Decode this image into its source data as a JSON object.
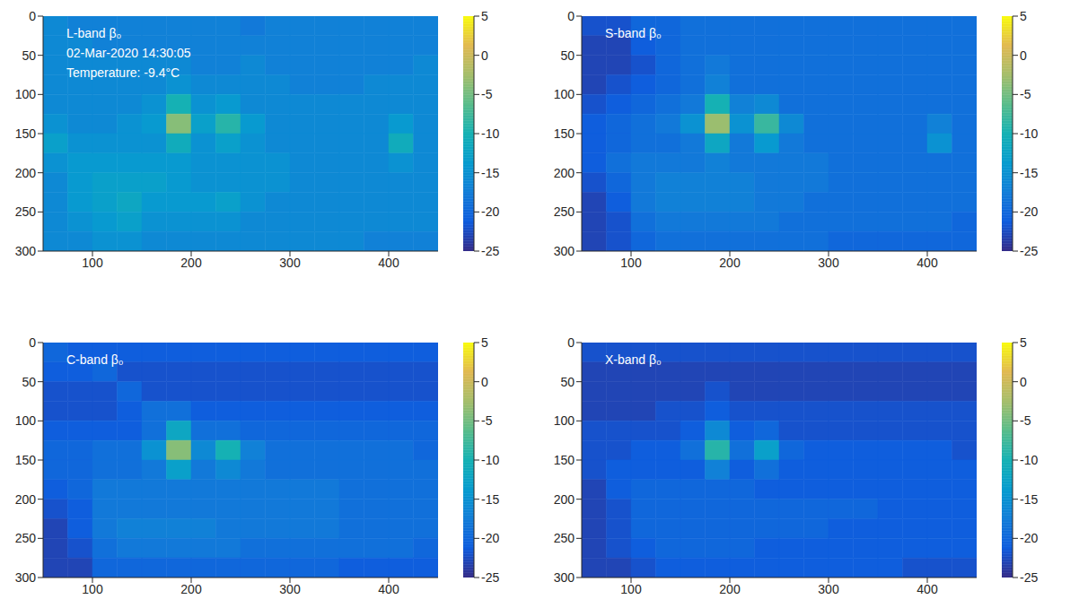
{
  "chart_data": [
    {
      "type": "heatmap",
      "title": "L-band β₀",
      "annotations": [
        "02-Mar-2020 14:30:05",
        "Temperature: -9.4°C"
      ],
      "xlim": [
        50,
        450
      ],
      "xticks": [
        100,
        200,
        300,
        400
      ],
      "ylim": [
        0,
        300
      ],
      "yticks": [
        0,
        50,
        100,
        150,
        200,
        250,
        300
      ],
      "x_edges": [
        50,
        75,
        100,
        125,
        150,
        175,
        200,
        225,
        250,
        275,
        300,
        325,
        350,
        375,
        400,
        425,
        450
      ],
      "y_edges": [
        0,
        25,
        50,
        75,
        100,
        125,
        150,
        175,
        200,
        225,
        250,
        275,
        300
      ],
      "cells": [
        [
          -16,
          -17,
          -17,
          -17,
          -17,
          -17,
          -17,
          -17,
          -18,
          -17,
          -17,
          -17,
          -17,
          -17,
          -17,
          -17
        ],
        [
          -16,
          -16,
          -17,
          -17,
          -17,
          -17,
          -17,
          -17,
          -17,
          -17,
          -17,
          -17,
          -17,
          -17,
          -17,
          -17
        ],
        [
          -16,
          -16,
          -16,
          -16,
          -16,
          -16,
          -17,
          -17,
          -16,
          -17,
          -17,
          -17,
          -17,
          -17,
          -17,
          -16
        ],
        [
          -16,
          -16,
          -16,
          -16,
          -16,
          -15,
          -16,
          -16,
          -16,
          -16,
          -17,
          -17,
          -17,
          -16,
          -16,
          -16
        ],
        [
          -16,
          -16,
          -16,
          -16,
          -15,
          -10,
          -15,
          -14,
          -16,
          -16,
          -16,
          -16,
          -16,
          -16,
          -16,
          -16
        ],
        [
          -15,
          -16,
          -16,
          -15,
          -14,
          -4,
          -13,
          -9,
          -14,
          -16,
          -16,
          -16,
          -16,
          -16,
          -14,
          -16
        ],
        [
          -13,
          -15,
          -15,
          -15,
          -15,
          -11,
          -15,
          -13,
          -15,
          -16,
          -16,
          -16,
          -16,
          -16,
          -11,
          -16
        ],
        [
          -15,
          -14,
          -14,
          -14,
          -14,
          -14,
          -15,
          -15,
          -15,
          -15,
          -16,
          -16,
          -16,
          -16,
          -15,
          -16
        ],
        [
          -16,
          -14,
          -13,
          -13,
          -13,
          -14,
          -15,
          -15,
          -15,
          -15,
          -16,
          -16,
          -16,
          -16,
          -16,
          -16
        ],
        [
          -16,
          -14,
          -13,
          -12,
          -14,
          -14,
          -14,
          -13,
          -15,
          -16,
          -16,
          -16,
          -16,
          -16,
          -16,
          -16
        ],
        [
          -16,
          -15,
          -14,
          -13,
          -15,
          -15,
          -15,
          -15,
          -16,
          -16,
          -16,
          -16,
          -16,
          -16,
          -16,
          -16
        ],
        [
          -16,
          -16,
          -15,
          -15,
          -16,
          -16,
          -16,
          -16,
          -16,
          -16,
          -16,
          -16,
          -16,
          -17,
          -17,
          -17
        ]
      ],
      "colorbar": {
        "range": [
          -25,
          5
        ],
        "ticks": [
          -25,
          -20,
          -15,
          -10,
          -5,
          0,
          5
        ]
      }
    },
    {
      "type": "heatmap",
      "title": "S-band β₀",
      "xlim": [
        50,
        450
      ],
      "xticks": [
        100,
        200,
        300,
        400
      ],
      "ylim": [
        0,
        300
      ],
      "yticks": [
        0,
        50,
        100,
        150,
        200,
        250,
        300
      ],
      "x_edges": [
        50,
        75,
        100,
        125,
        150,
        175,
        200,
        225,
        250,
        275,
        300,
        325,
        350,
        375,
        400,
        425,
        450
      ],
      "y_edges": [
        0,
        25,
        50,
        75,
        100,
        125,
        150,
        175,
        200,
        225,
        250,
        275,
        300
      ],
      "cells": [
        [
          -22,
          -22,
          -20,
          -20,
          -19,
          -19,
          -19,
          -19,
          -19,
          -19,
          -19,
          -19,
          -19,
          -19,
          -19,
          -19
        ],
        [
          -23,
          -23,
          -21,
          -20,
          -19,
          -19,
          -19,
          -19,
          -19,
          -19,
          -19,
          -19,
          -19,
          -19,
          -19,
          -19
        ],
        [
          -23,
          -23,
          -22,
          -20,
          -19,
          -18,
          -19,
          -19,
          -19,
          -19,
          -19,
          -19,
          -19,
          -19,
          -19,
          -19
        ],
        [
          -23,
          -22,
          -21,
          -20,
          -19,
          -17,
          -19,
          -19,
          -19,
          -19,
          -19,
          -19,
          -19,
          -19,
          -19,
          -19
        ],
        [
          -22,
          -21,
          -20,
          -19,
          -18,
          -10,
          -17,
          -16,
          -19,
          -19,
          -19,
          -19,
          -19,
          -19,
          -19,
          -19
        ],
        [
          -21,
          -20,
          -19,
          -18,
          -15,
          -3,
          -15,
          -8,
          -16,
          -19,
          -19,
          -19,
          -19,
          -19,
          -17,
          -19
        ],
        [
          -21,
          -20,
          -19,
          -19,
          -18,
          -12,
          -18,
          -14,
          -18,
          -19,
          -19,
          -19,
          -19,
          -19,
          -15,
          -19
        ],
        [
          -21,
          -19,
          -18,
          -18,
          -18,
          -17,
          -18,
          -18,
          -18,
          -18,
          -19,
          -19,
          -19,
          -19,
          -19,
          -19
        ],
        [
          -22,
          -20,
          -18,
          -17,
          -17,
          -17,
          -17,
          -18,
          -18,
          -18,
          -19,
          -19,
          -19,
          -19,
          -19,
          -19
        ],
        [
          -23,
          -21,
          -18,
          -17,
          -17,
          -17,
          -17,
          -18,
          -18,
          -19,
          -19,
          -19,
          -19,
          -19,
          -19,
          -19
        ],
        [
          -23,
          -22,
          -19,
          -18,
          -18,
          -18,
          -18,
          -18,
          -19,
          -19,
          -19,
          -19,
          -19,
          -19,
          -19,
          -20
        ],
        [
          -23,
          -22,
          -20,
          -19,
          -19,
          -19,
          -19,
          -19,
          -19,
          -19,
          -20,
          -20,
          -20,
          -20,
          -20,
          -20
        ]
      ],
      "colorbar": {
        "range": [
          -25,
          5
        ],
        "ticks": [
          -25,
          -20,
          -15,
          -10,
          -5,
          0,
          5
        ]
      }
    },
    {
      "type": "heatmap",
      "title": "C-band β₀",
      "xlim": [
        50,
        450
      ],
      "xticks": [
        100,
        200,
        300,
        400
      ],
      "ylim": [
        0,
        300
      ],
      "yticks": [
        0,
        50,
        100,
        150,
        200,
        250,
        300
      ],
      "x_edges": [
        50,
        75,
        100,
        125,
        150,
        175,
        200,
        225,
        250,
        275,
        300,
        325,
        350,
        375,
        400,
        425,
        450
      ],
      "y_edges": [
        0,
        25,
        50,
        75,
        100,
        125,
        150,
        175,
        200,
        225,
        250,
        275,
        300
      ],
      "cells": [
        [
          -20,
          -21,
          -21,
          -21,
          -21,
          -21,
          -21,
          -21,
          -21,
          -21,
          -21,
          -21,
          -21,
          -21,
          -21,
          -21
        ],
        [
          -21,
          -21,
          -20,
          -22,
          -22,
          -22,
          -22,
          -22,
          -22,
          -22,
          -22,
          -22,
          -22,
          -22,
          -22,
          -22
        ],
        [
          -22,
          -22,
          -22,
          -20,
          -22,
          -22,
          -22,
          -22,
          -22,
          -22,
          -22,
          -22,
          -22,
          -22,
          -22,
          -22
        ],
        [
          -22,
          -22,
          -22,
          -21,
          -19,
          -19,
          -21,
          -21,
          -21,
          -21,
          -21,
          -21,
          -21,
          -21,
          -21,
          -21
        ],
        [
          -21,
          -21,
          -21,
          -21,
          -19,
          -12,
          -19,
          -19,
          -20,
          -20,
          -20,
          -20,
          -20,
          -20,
          -20,
          -20
        ],
        [
          -20,
          -20,
          -19,
          -19,
          -15,
          -4,
          -16,
          -10,
          -17,
          -19,
          -19,
          -19,
          -19,
          -19,
          -19,
          -20
        ],
        [
          -20,
          -20,
          -19,
          -19,
          -18,
          -13,
          -18,
          -16,
          -18,
          -19,
          -19,
          -19,
          -19,
          -19,
          -19,
          -19
        ],
        [
          -21,
          -20,
          -18,
          -18,
          -18,
          -18,
          -18,
          -18,
          -18,
          -18,
          -18,
          -18,
          -19,
          -19,
          -19,
          -19
        ],
        [
          -22,
          -21,
          -18,
          -18,
          -18,
          -18,
          -18,
          -18,
          -18,
          -18,
          -18,
          -18,
          -19,
          -19,
          -19,
          -19
        ],
        [
          -23,
          -21,
          -18,
          -17,
          -17,
          -17,
          -17,
          -18,
          -18,
          -18,
          -18,
          -18,
          -19,
          -19,
          -19,
          -19
        ],
        [
          -23,
          -22,
          -19,
          -18,
          -18,
          -18,
          -18,
          -18,
          -19,
          -19,
          -19,
          -19,
          -19,
          -19,
          -19,
          -20
        ],
        [
          -23,
          -23,
          -20,
          -20,
          -20,
          -20,
          -20,
          -20,
          -20,
          -20,
          -20,
          -20,
          -21,
          -21,
          -21,
          -21
        ]
      ],
      "colorbar": {
        "range": [
          -25,
          5
        ],
        "ticks": [
          -25,
          -20,
          -15,
          -10,
          -5,
          0,
          5
        ]
      }
    },
    {
      "type": "heatmap",
      "title": "X-band β₀",
      "xlim": [
        50,
        450
      ],
      "xticks": [
        100,
        200,
        300,
        400
      ],
      "ylim": [
        0,
        300
      ],
      "yticks": [
        0,
        50,
        100,
        150,
        200,
        250,
        300
      ],
      "x_edges": [
        50,
        75,
        100,
        125,
        150,
        175,
        200,
        225,
        250,
        275,
        300,
        325,
        350,
        375,
        400,
        425,
        450
      ],
      "y_edges": [
        0,
        25,
        50,
        75,
        100,
        125,
        150,
        175,
        200,
        225,
        250,
        275,
        300
      ],
      "cells": [
        [
          -22,
          -22,
          -22,
          -22,
          -22,
          -22,
          -22,
          -22,
          -22,
          -22,
          -22,
          -22,
          -22,
          -22,
          -22,
          -22
        ],
        [
          -23,
          -23,
          -23,
          -23,
          -23,
          -23,
          -23,
          -23,
          -23,
          -23,
          -23,
          -23,
          -23,
          -23,
          -23,
          -23
        ],
        [
          -23,
          -23,
          -23,
          -23,
          -23,
          -22,
          -23,
          -23,
          -23,
          -23,
          -23,
          -23,
          -23,
          -23,
          -23,
          -23
        ],
        [
          -23,
          -23,
          -23,
          -22,
          -22,
          -21,
          -22,
          -22,
          -22,
          -22,
          -22,
          -22,
          -22,
          -22,
          -22,
          -22
        ],
        [
          -22,
          -22,
          -22,
          -22,
          -21,
          -16,
          -21,
          -20,
          -22,
          -22,
          -22,
          -22,
          -22,
          -22,
          -22,
          -22
        ],
        [
          -22,
          -22,
          -21,
          -21,
          -19,
          -9,
          -19,
          -13,
          -20,
          -21,
          -21,
          -21,
          -21,
          -21,
          -21,
          -22
        ],
        [
          -22,
          -21,
          -21,
          -21,
          -21,
          -17,
          -21,
          -19,
          -21,
          -21,
          -21,
          -21,
          -21,
          -21,
          -21,
          -21
        ],
        [
          -23,
          -21,
          -20,
          -20,
          -20,
          -20,
          -20,
          -21,
          -21,
          -21,
          -21,
          -21,
          -21,
          -21,
          -21,
          -21
        ],
        [
          -23,
          -22,
          -20,
          -20,
          -20,
          -20,
          -20,
          -20,
          -20,
          -20,
          -20,
          -20,
          -21,
          -21,
          -21,
          -21
        ],
        [
          -23,
          -22,
          -20,
          -20,
          -20,
          -20,
          -20,
          -20,
          -20,
          -20,
          -21,
          -21,
          -21,
          -21,
          -21,
          -21
        ],
        [
          -23,
          -22,
          -21,
          -20,
          -20,
          -20,
          -20,
          -21,
          -21,
          -21,
          -21,
          -21,
          -21,
          -21,
          -21,
          -21
        ],
        [
          -23,
          -23,
          -22,
          -21,
          -21,
          -21,
          -21,
          -21,
          -21,
          -21,
          -21,
          -21,
          -21,
          -22,
          -22,
          -22
        ]
      ],
      "colorbar": {
        "range": [
          -25,
          5
        ],
        "ticks": [
          -25,
          -20,
          -15,
          -10,
          -5,
          0,
          5
        ]
      }
    }
  ]
}
